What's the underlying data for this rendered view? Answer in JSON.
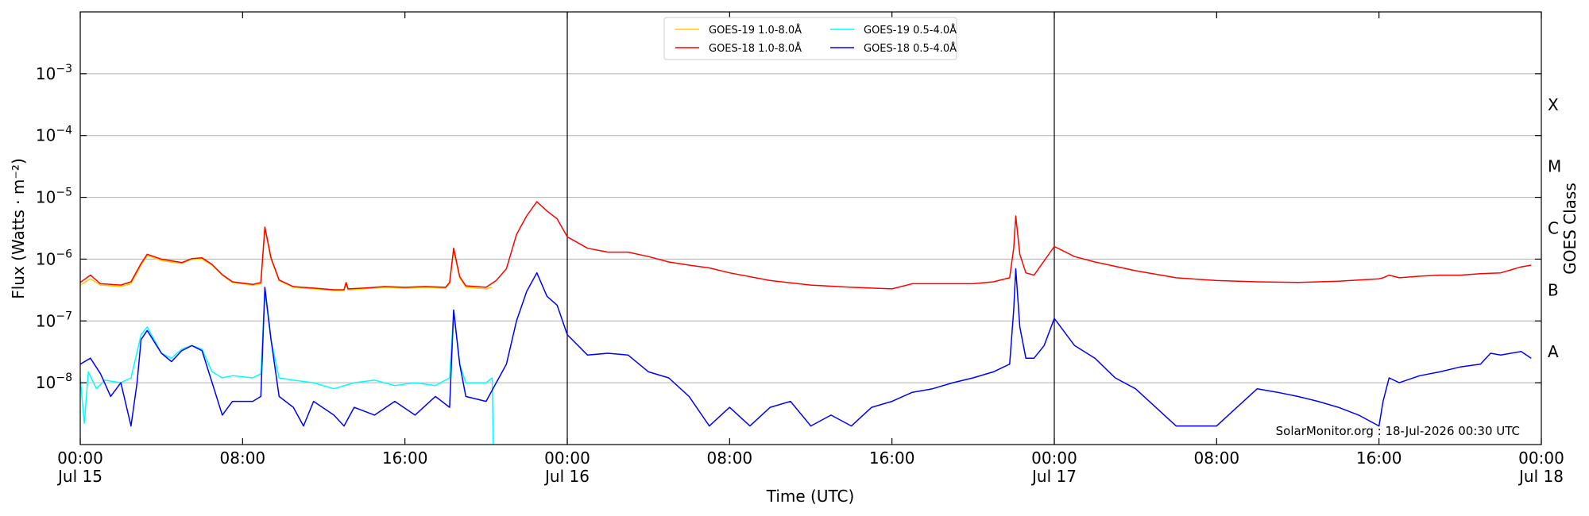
{
  "chart_data": {
    "type": "line",
    "xlabel": "Time (UTC)",
    "ylabel": "Flux (Watts · m⁻²)",
    "ylabel_right": "GOES Class",
    "yscale": "log",
    "xlim_hours": [
      0,
      72
    ],
    "ylim": [
      1e-09,
      0.01
    ],
    "grid": true,
    "legend_position": "top-center",
    "x_ticks": [
      {
        "hour": 0,
        "line1": "00:00",
        "line2": "Jul 15"
      },
      {
        "hour": 8,
        "line1": "08:00",
        "line2": ""
      },
      {
        "hour": 16,
        "line1": "16:00",
        "line2": ""
      },
      {
        "hour": 24,
        "line1": "00:00",
        "line2": "Jul 16"
      },
      {
        "hour": 32,
        "line1": "08:00",
        "line2": ""
      },
      {
        "hour": 40,
        "line1": "16:00",
        "line2": ""
      },
      {
        "hour": 48,
        "line1": "00:00",
        "line2": "Jul 17"
      },
      {
        "hour": 56,
        "line1": "08:00",
        "line2": ""
      },
      {
        "hour": 64,
        "line1": "16:00",
        "line2": ""
      },
      {
        "hour": 72,
        "line1": "00:00",
        "line2": "Jul 18"
      }
    ],
    "y_ticks": [
      {
        "exp": -8,
        "label": "10−8"
      },
      {
        "exp": -7,
        "label": "10−7"
      },
      {
        "exp": -6,
        "label": "10−6"
      },
      {
        "exp": -5,
        "label": "10−5"
      },
      {
        "exp": -4,
        "label": "10−4"
      },
      {
        "exp": -3,
        "label": "10−3"
      }
    ],
    "goes_classes": [
      {
        "label": "A",
        "exp": -7.5
      },
      {
        "label": "B",
        "exp": -6.5
      },
      {
        "label": "C",
        "exp": -5.5
      },
      {
        "label": "M",
        "exp": -4.5
      },
      {
        "label": "X",
        "exp": -3.5
      }
    ],
    "day_boundaries_hours": [
      24,
      48
    ],
    "annotation": "SolarMonitor.org : 18-Jul-2026 00:30 UTC",
    "series": [
      {
        "name": "GOES-19 1.0-8.0Å",
        "color": "#ffcc00",
        "points": [
          [
            0,
            3.8e-07
          ],
          [
            0.5,
            4.8e-07
          ],
          [
            1,
            3.8e-07
          ],
          [
            2,
            3.6e-07
          ],
          [
            2.5,
            4e-07
          ],
          [
            3,
            8e-07
          ],
          [
            3.3,
            1.15e-06
          ],
          [
            4,
            9.5e-07
          ],
          [
            5,
            8.5e-07
          ],
          [
            5.5,
            1e-06
          ],
          [
            6,
            1e-06
          ],
          [
            6.5,
            8e-07
          ],
          [
            7,
            5.5e-07
          ],
          [
            7.5,
            4.2e-07
          ],
          [
            8.5,
            3.8e-07
          ],
          [
            8.9,
            4e-07
          ],
          [
            9.1,
            3.2e-06
          ],
          [
            9.4,
            1e-06
          ],
          [
            9.8,
            4.5e-07
          ],
          [
            10.5,
            3.5e-07
          ],
          [
            11.5,
            3.3e-07
          ],
          [
            12.5,
            3.1e-07
          ],
          [
            13,
            3.1e-07
          ],
          [
            13.1,
            4.1e-07
          ],
          [
            13.2,
            3.2e-07
          ],
          [
            14,
            3.3e-07
          ],
          [
            15,
            3.5e-07
          ],
          [
            16,
            3.4e-07
          ],
          [
            17,
            3.5e-07
          ],
          [
            18,
            3.4e-07
          ],
          [
            18.2,
            4e-07
          ],
          [
            18.4,
            1.4e-06
          ],
          [
            18.7,
            5e-07
          ],
          [
            19,
            3.5e-07
          ],
          [
            20,
            3.3e-07
          ],
          [
            20.3,
            3.5e-07
          ]
        ]
      },
      {
        "name": "GOES-18 1.0-8.0Å",
        "color": "#ff0000",
        "points": [
          [
            0,
            4.2e-07
          ],
          [
            0.5,
            5.5e-07
          ],
          [
            1,
            4e-07
          ],
          [
            2,
            3.8e-07
          ],
          [
            2.5,
            4.3e-07
          ],
          [
            3,
            8.5e-07
          ],
          [
            3.3,
            1.2e-06
          ],
          [
            4,
            1e-06
          ],
          [
            5,
            8.8e-07
          ],
          [
            5.5,
            1.02e-06
          ],
          [
            6,
            1.05e-06
          ],
          [
            6.5,
            8.2e-07
          ],
          [
            7,
            5.6e-07
          ],
          [
            7.5,
            4.3e-07
          ],
          [
            8.5,
            3.9e-07
          ],
          [
            8.9,
            4.2e-07
          ],
          [
            9.1,
            3.3e-06
          ],
          [
            9.4,
            1.05e-06
          ],
          [
            9.8,
            4.6e-07
          ],
          [
            10.5,
            3.6e-07
          ],
          [
            11.5,
            3.4e-07
          ],
          [
            12.5,
            3.2e-07
          ],
          [
            13,
            3.2e-07
          ],
          [
            13.1,
            4.2e-07
          ],
          [
            13.2,
            3.3e-07
          ],
          [
            14,
            3.4e-07
          ],
          [
            15,
            3.6e-07
          ],
          [
            16,
            3.5e-07
          ],
          [
            17,
            3.6e-07
          ],
          [
            18,
            3.5e-07
          ],
          [
            18.2,
            4.2e-07
          ],
          [
            18.4,
            1.5e-06
          ],
          [
            18.7,
            5.2e-07
          ],
          [
            19,
            3.7e-07
          ],
          [
            20,
            3.5e-07
          ],
          [
            20.5,
            4.5e-07
          ],
          [
            21,
            7e-07
          ],
          [
            21.5,
            2.5e-06
          ],
          [
            22,
            5e-06
          ],
          [
            22.5,
            8.5e-06
          ],
          [
            23,
            6e-06
          ],
          [
            23.5,
            4.5e-06
          ],
          [
            24,
            2.3e-06
          ],
          [
            25,
            1.5e-06
          ],
          [
            26,
            1.3e-06
          ],
          [
            27,
            1.3e-06
          ],
          [
            28,
            1.1e-06
          ],
          [
            29,
            9e-07
          ],
          [
            30,
            8e-07
          ],
          [
            31,
            7.2e-07
          ],
          [
            32,
            6e-07
          ],
          [
            34,
            4.5e-07
          ],
          [
            36,
            3.8e-07
          ],
          [
            38,
            3.5e-07
          ],
          [
            39,
            3.4e-07
          ],
          [
            40,
            3.3e-07
          ],
          [
            41,
            4e-07
          ],
          [
            42,
            4e-07
          ],
          [
            44,
            4e-07
          ],
          [
            45,
            4.3e-07
          ],
          [
            45.8,
            5e-07
          ],
          [
            46,
            1.5e-06
          ],
          [
            46.1,
            5e-06
          ],
          [
            46.3,
            1.2e-06
          ],
          [
            46.6,
            6e-07
          ],
          [
            47,
            5.5e-07
          ],
          [
            48,
            1.6e-06
          ],
          [
            49,
            1.1e-06
          ],
          [
            50,
            9e-07
          ],
          [
            52,
            6.5e-07
          ],
          [
            54,
            5e-07
          ],
          [
            56,
            4.5e-07
          ],
          [
            58,
            4.3e-07
          ],
          [
            60,
            4.2e-07
          ],
          [
            62,
            4.4e-07
          ],
          [
            64,
            4.8e-07
          ],
          [
            64.2,
            5e-07
          ],
          [
            64.5,
            5.5e-07
          ],
          [
            65,
            5e-07
          ],
          [
            66,
            5.3e-07
          ],
          [
            67,
            5.5e-07
          ],
          [
            68,
            5.5e-07
          ],
          [
            69,
            5.8e-07
          ],
          [
            70,
            6e-07
          ],
          [
            71,
            7.5e-07
          ],
          [
            71.5,
            8e-07
          ]
        ]
      },
      {
        "name": "GOES-19 0.5-4.0Å",
        "color": "#00ffff",
        "points": [
          [
            0,
            1.2e-08
          ],
          [
            0.2,
            2.2e-09
          ],
          [
            0.4,
            1.5e-08
          ],
          [
            0.8,
            8e-09
          ],
          [
            1.2,
            1.1e-08
          ],
          [
            2,
            1e-08
          ],
          [
            2.5,
            1.2e-08
          ],
          [
            3,
            6e-08
          ],
          [
            3.3,
            8e-08
          ],
          [
            4,
            3e-08
          ],
          [
            4.5,
            2.5e-08
          ],
          [
            5,
            3.5e-08
          ],
          [
            5.5,
            4e-08
          ],
          [
            6,
            3.5e-08
          ],
          [
            6.5,
            1.5e-08
          ],
          [
            7,
            1.2e-08
          ],
          [
            7.5,
            1.3e-08
          ],
          [
            8.5,
            1.2e-08
          ],
          [
            8.9,
            1.4e-08
          ],
          [
            9.1,
            3e-07
          ],
          [
            9.4,
            5e-08
          ],
          [
            9.8,
            1.2e-08
          ],
          [
            10.5,
            1.1e-08
          ],
          [
            11.5,
            1e-08
          ],
          [
            12.5,
            8e-09
          ],
          [
            13.5,
            1e-08
          ],
          [
            14.5,
            1.1e-08
          ],
          [
            15.5,
            9e-09
          ],
          [
            16.5,
            1e-08
          ],
          [
            17.5,
            9e-09
          ],
          [
            18.2,
            1.2e-08
          ],
          [
            18.4,
            1.5e-07
          ],
          [
            18.7,
            2e-08
          ],
          [
            19,
            1e-08
          ],
          [
            20,
            1e-08
          ],
          [
            20.3,
            1.2e-08
          ],
          [
            20.35,
            1e-09
          ]
        ]
      },
      {
        "name": "GOES-18 0.5-4.0Å",
        "color": "#0000ff",
        "points": [
          [
            0,
            2e-08
          ],
          [
            0.5,
            2.5e-08
          ],
          [
            1,
            1.4e-08
          ],
          [
            1.5,
            6e-09
          ],
          [
            2,
            1e-08
          ],
          [
            2.5,
            2e-09
          ],
          [
            2.8,
            1e-08
          ],
          [
            3,
            5e-08
          ],
          [
            3.3,
            7e-08
          ],
          [
            4,
            3e-08
          ],
          [
            4.5,
            2.2e-08
          ],
          [
            5,
            3.3e-08
          ],
          [
            5.5,
            4e-08
          ],
          [
            6,
            3.3e-08
          ],
          [
            6.5,
            1e-08
          ],
          [
            7,
            3e-09
          ],
          [
            7.5,
            5e-09
          ],
          [
            8.5,
            5e-09
          ],
          [
            8.9,
            6e-09
          ],
          [
            9.1,
            3.5e-07
          ],
          [
            9.4,
            5e-08
          ],
          [
            9.8,
            6e-09
          ],
          [
            10.5,
            4e-09
          ],
          [
            11,
            2e-09
          ],
          [
            11.5,
            5e-09
          ],
          [
            12.5,
            3e-09
          ],
          [
            13,
            2e-09
          ],
          [
            13.5,
            4e-09
          ],
          [
            14.5,
            3e-09
          ],
          [
            15.5,
            5e-09
          ],
          [
            16.5,
            3e-09
          ],
          [
            17.5,
            6e-09
          ],
          [
            18.2,
            4e-09
          ],
          [
            18.4,
            1.5e-07
          ],
          [
            18.7,
            2e-08
          ],
          [
            19,
            6e-09
          ],
          [
            20,
            5e-09
          ],
          [
            20.5,
            1e-08
          ],
          [
            21,
            2e-08
          ],
          [
            21.5,
            1e-07
          ],
          [
            22,
            3e-07
          ],
          [
            22.5,
            6e-07
          ],
          [
            23,
            2.5e-07
          ],
          [
            23.5,
            1.8e-07
          ],
          [
            24,
            6e-08
          ],
          [
            25,
            2.8e-08
          ],
          [
            26,
            3e-08
          ],
          [
            27,
            2.8e-08
          ],
          [
            28,
            1.5e-08
          ],
          [
            29,
            1.2e-08
          ],
          [
            30,
            6e-09
          ],
          [
            31,
            2e-09
          ],
          [
            32,
            4e-09
          ],
          [
            33,
            2e-09
          ],
          [
            34,
            4e-09
          ],
          [
            35,
            5e-09
          ],
          [
            36,
            2e-09
          ],
          [
            37,
            3e-09
          ],
          [
            38,
            2e-09
          ],
          [
            39,
            4e-09
          ],
          [
            40,
            5e-09
          ],
          [
            41,
            7e-09
          ],
          [
            42,
            8e-09
          ],
          [
            43,
            1e-08
          ],
          [
            44,
            1.2e-08
          ],
          [
            45,
            1.5e-08
          ],
          [
            45.8,
            2e-08
          ],
          [
            46,
            1.5e-07
          ],
          [
            46.1,
            7e-07
          ],
          [
            46.3,
            8e-08
          ],
          [
            46.6,
            2.5e-08
          ],
          [
            47,
            2.5e-08
          ],
          [
            47.5,
            4e-08
          ],
          [
            48,
            1.1e-07
          ],
          [
            49,
            4e-08
          ],
          [
            50,
            2.5e-08
          ],
          [
            51,
            1.2e-08
          ],
          [
            52,
            8e-09
          ],
          [
            53,
            4e-09
          ],
          [
            54,
            2e-09
          ],
          [
            55,
            2e-09
          ],
          [
            56,
            2e-09
          ],
          [
            57,
            4e-09
          ],
          [
            58,
            8e-09
          ],
          [
            59,
            7e-09
          ],
          [
            60,
            6e-09
          ],
          [
            61,
            5e-09
          ],
          [
            62,
            4e-09
          ],
          [
            63,
            3e-09
          ],
          [
            64,
            2e-09
          ],
          [
            64.2,
            5e-09
          ],
          [
            64.5,
            1.2e-08
          ],
          [
            65,
            1e-08
          ],
          [
            66,
            1.3e-08
          ],
          [
            67,
            1.5e-08
          ],
          [
            68,
            1.8e-08
          ],
          [
            69,
            2e-08
          ],
          [
            69.5,
            3e-08
          ],
          [
            70,
            2.8e-08
          ],
          [
            71,
            3.2e-08
          ],
          [
            71.5,
            2.5e-08
          ]
        ]
      }
    ]
  }
}
